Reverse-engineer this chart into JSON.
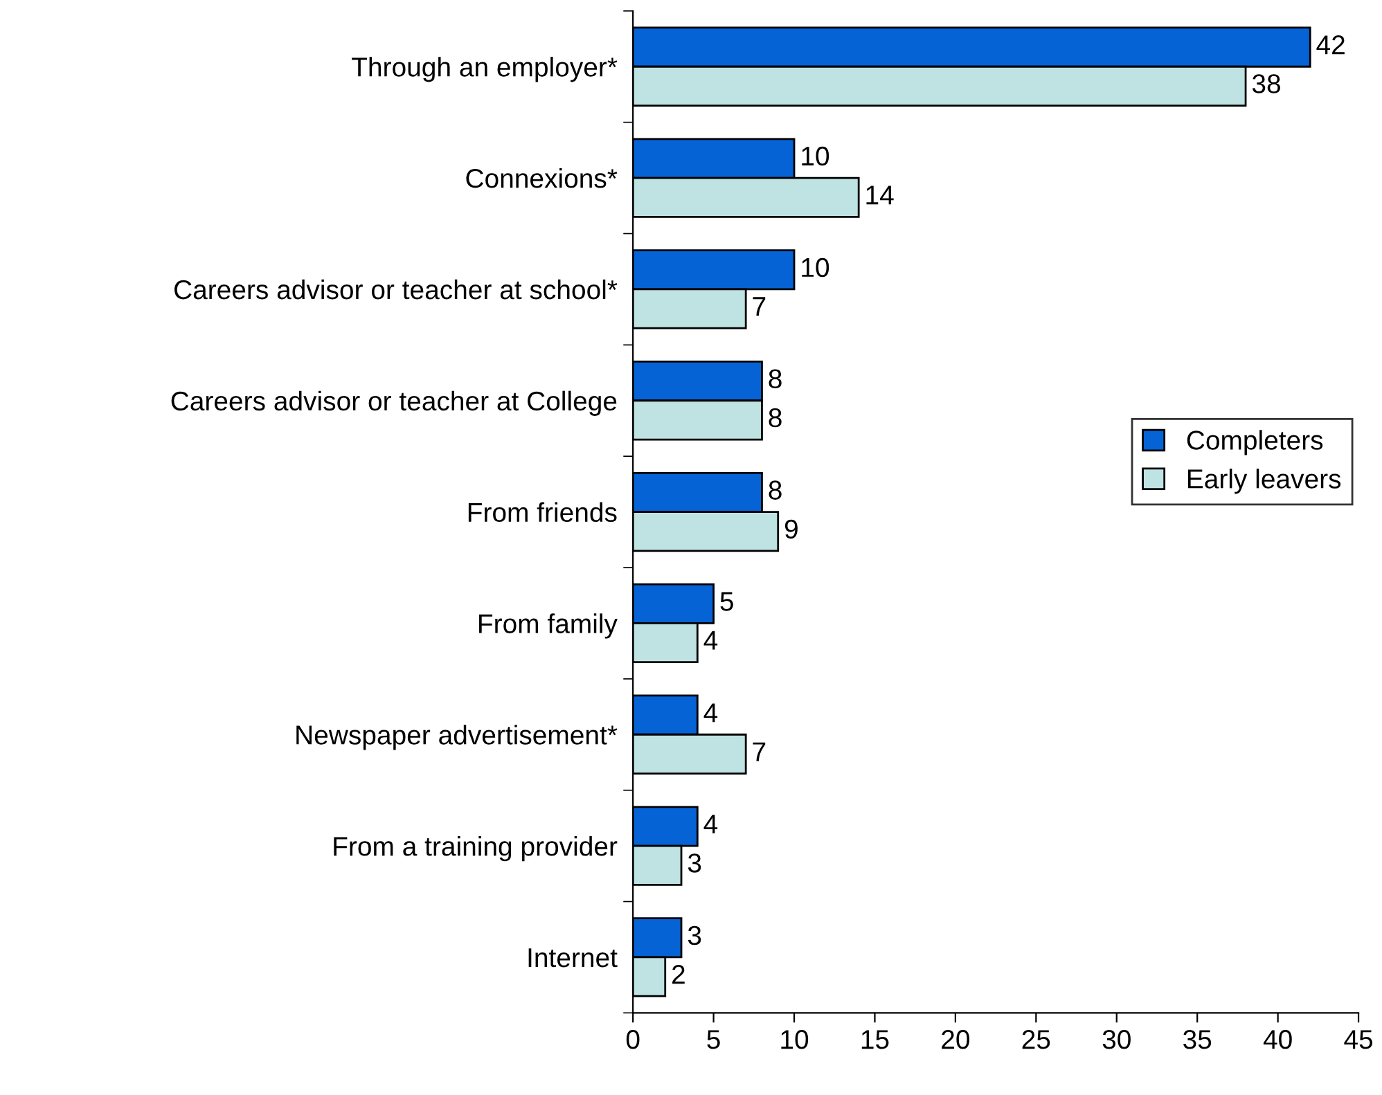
{
  "chart_data": {
    "type": "bar",
    "orientation": "horizontal",
    "categories": [
      "Through an employer*",
      "Connexions*",
      "Careers advisor or teacher at school*",
      "Careers advisor or teacher at College",
      "From friends",
      "From family",
      "Newspaper advertisement*",
      "From a training provider",
      "Internet"
    ],
    "series": [
      {
        "name": "Completers",
        "color": "#0563d6",
        "values": [
          42,
          10,
          10,
          8,
          8,
          5,
          4,
          4,
          3
        ]
      },
      {
        "name": "Early leavers",
        "color": "#bfe3e3",
        "values": [
          38,
          14,
          7,
          8,
          9,
          4,
          7,
          3,
          2
        ]
      }
    ],
    "xlim": [
      0,
      45
    ],
    "xticks": [
      0,
      5,
      10,
      15,
      20,
      25,
      30,
      35,
      40,
      45
    ],
    "data_labels": true,
    "legend": "right",
    "grid": false
  }
}
